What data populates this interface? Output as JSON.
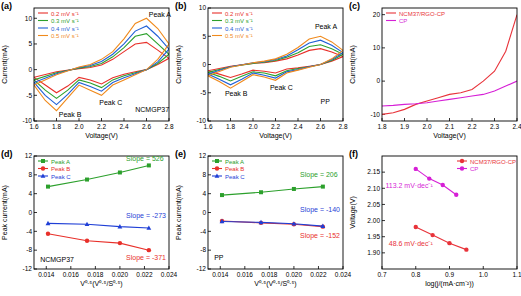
{
  "chart_data": [
    {
      "type": "line",
      "title": "(a)",
      "x_label": "Voltage(V)",
      "y_label": "Current(mA)",
      "x": [
        1.6,
        1.8,
        2.0,
        2.1,
        2.2,
        2.3,
        2.4,
        2.5,
        2.6,
        2.7,
        2.8,
        2.7,
        2.6,
        2.5,
        2.4,
        2.3,
        2.2,
        2.1,
        2.0,
        1.9,
        1.8,
        1.7,
        1.6
      ],
      "series": [
        {
          "name": "0.2 mV s⁻¹",
          "color": "#e8302a",
          "values": [
            -1.5,
            -0.4,
            0.2,
            0.4,
            0.9,
            2,
            3.5,
            5,
            5.3,
            3.8,
            2.2,
            1,
            0,
            -0.4,
            -0.9,
            -1.6,
            -2.8,
            -2,
            -1.5,
            -3.2,
            -4.5,
            -3,
            -1.5
          ]
        },
        {
          "name": "0.3 mV s⁻¹",
          "color": "#2ca02c",
          "values": [
            -2,
            -0.6,
            0.3,
            0.6,
            1.2,
            2.5,
            4.3,
            6.5,
            7,
            5,
            3,
            1.2,
            0,
            -0.6,
            -1.2,
            -2,
            -3.5,
            -2.6,
            -2,
            -4,
            -5.6,
            -4,
            -2
          ]
        },
        {
          "name": "0.4 mV s⁻¹",
          "color": "#1f5fd6",
          "values": [
            -2.5,
            -0.8,
            0.4,
            0.8,
            1.6,
            3,
            5,
            7.5,
            8.5,
            6.5,
            4,
            1.5,
            0,
            -0.8,
            -1.6,
            -2.5,
            -4.2,
            -3.3,
            -2.5,
            -4.8,
            -6.8,
            -5,
            -2.5
          ]
        },
        {
          "name": "0.5 mV s⁻¹",
          "color": "#f08a1c",
          "values": [
            -3,
            -1,
            0.5,
            1,
            2,
            3.5,
            6,
            9,
            10,
            8,
            5,
            2,
            0,
            -1,
            -2,
            -3,
            -5,
            -4,
            -3,
            -5.5,
            -8,
            -6,
            -3
          ]
        }
      ],
      "xlim": [
        1.6,
        2.8
      ],
      "xticks": [
        1.6,
        1.8,
        {
          "value": 2.0,
          "label": "2.0"
        },
        2.2,
        2.4,
        2.6,
        2.8
      ],
      "ylim": [
        -10,
        12
      ],
      "yticks": [
        -10,
        -5,
        0,
        5,
        10
      ],
      "legend": "top-left",
      "grid": false,
      "annotations": [
        {
          "text": "Peak A",
          "x": 2.62,
          "y": 10.3
        },
        {
          "text": "Peak C",
          "x": 2.18,
          "y": -6.8
        },
        {
          "text": "Peak B",
          "x": 1.82,
          "y": -9.3
        },
        {
          "text": "NCMGP37",
          "x": 2.5,
          "y": -8.3
        }
      ]
    },
    {
      "type": "line",
      "title": "(b)",
      "x_label": "Voltage(V)",
      "y_label": "Current(mA)",
      "x": [
        1.6,
        1.8,
        2.0,
        2.1,
        2.2,
        2.3,
        2.4,
        2.5,
        2.6,
        2.7,
        2.8,
        2.7,
        2.6,
        2.5,
        2.4,
        2.3,
        2.2,
        2.1,
        2.0,
        1.9,
        1.8,
        1.7,
        1.6
      ],
      "series": [
        {
          "name": "0.2 mV s⁻¹",
          "color": "#e8302a",
          "values": [
            -1.1,
            -0.3,
            0.2,
            0.3,
            0.6,
            1,
            1.7,
            2.5,
            2.8,
            2.2,
            1.4,
            0.6,
            0,
            -0.3,
            -0.6,
            -0.8,
            -1.5,
            -1.2,
            -1,
            -1.7,
            -2.3,
            -1.7,
            -1.1
          ]
        },
        {
          "name": "0.3 mV s⁻¹",
          "color": "#2ca02c",
          "values": [
            -1.4,
            -0.4,
            0.2,
            0.4,
            0.7,
            1.3,
            2.1,
            3.2,
            3.5,
            2.8,
            1.8,
            0.7,
            0,
            -0.4,
            -0.7,
            -1.1,
            -2,
            -1.5,
            -1.3,
            -2.1,
            -2.9,
            -2.1,
            -1.4
          ]
        },
        {
          "name": "0.4 mV s⁻¹",
          "color": "#1f5fd6",
          "values": [
            -1.7,
            -0.4,
            0.3,
            0.5,
            0.9,
            1.5,
            2.6,
            3.8,
            4.3,
            3.4,
            2.1,
            0.9,
            0,
            -0.4,
            -0.9,
            -1.3,
            -2.4,
            -1.9,
            -1.5,
            -2.6,
            -3.6,
            -2.6,
            -1.7
          ]
        },
        {
          "name": "0.5 mV s⁻¹",
          "color": "#f08a1c",
          "values": [
            -2,
            -0.5,
            0.3,
            0.6,
            1,
            1.8,
            3,
            4.5,
            5,
            4,
            2.5,
            1,
            0,
            -0.5,
            -1,
            -1.5,
            -2.8,
            -2.2,
            -1.8,
            -3,
            -4.2,
            -3,
            -2
          ]
        }
      ],
      "xlim": [
        1.6,
        2.8
      ],
      "xticks": [
        1.6,
        1.8,
        {
          "value": 2.0,
          "label": "2.0"
        },
        2.2,
        2.4,
        2.6,
        2.8
      ],
      "ylim": [
        -10,
        10
      ],
      "yticks": [
        -10,
        -5,
        0,
        5,
        10
      ],
      "legend": "top-left",
      "grid": false,
      "annotations": [
        {
          "text": "Peak A",
          "x": 2.55,
          "y": 6.2
        },
        {
          "text": "Peak C",
          "x": 2.15,
          "y": -4.6
        },
        {
          "text": "Peak B",
          "x": 1.75,
          "y": -5.6
        },
        {
          "text": "PP",
          "x": 2.6,
          "y": -7
        }
      ]
    },
    {
      "type": "line",
      "title": "(c)",
      "x_label": "Voltage(V)",
      "y_label": "Current(mA)",
      "x": [
        1.8,
        1.85,
        1.9,
        1.95,
        2.0,
        2.05,
        2.1,
        2.15,
        2.2,
        2.25,
        2.3,
        2.35,
        2.4
      ],
      "series": [
        {
          "name": "NCM37/RGO-CP",
          "color": "#e8333a",
          "values": [
            -10,
            -9.5,
            -8.5,
            -7,
            -6,
            -5,
            -4,
            -3.5,
            -2.5,
            0,
            3,
            9,
            20
          ]
        },
        {
          "name": "CP",
          "color": "#d61fd6",
          "values": [
            -7.5,
            -7.3,
            -7,
            -6.8,
            -6.5,
            -6,
            -5.5,
            -5,
            -4.5,
            -4,
            -3,
            -1.5,
            0
          ]
        }
      ],
      "xlim": [
        1.8,
        2.4
      ],
      "xticks": [
        1.8,
        1.9,
        {
          "value": 2.0,
          "label": "2.0"
        },
        2.1,
        2.2,
        2.3,
        2.4
      ],
      "ylim": [
        -12,
        22
      ],
      "yticks": [
        -10,
        0,
        10,
        20
      ],
      "legend": "top-left",
      "grid": false
    },
    {
      "type": "line",
      "title": "(d)",
      "x_label": "V⁰·⁵(V⁰·⁵/S⁰·⁵)",
      "y_label": "Peak current(mA)",
      "x": [
        0.01414,
        0.01732,
        0.02,
        0.02236
      ],
      "series": [
        {
          "name": "Peak A",
          "color": "#2ca02c",
          "marker": "square",
          "line_style": "solid",
          "values": [
            5.5,
            7,
            8.5,
            10
          ]
        },
        {
          "name": "Peak B",
          "color": "#e8302a",
          "marker": "circle",
          "line_style": "solid",
          "values": [
            -4.5,
            -6,
            -6.5,
            -8
          ]
        },
        {
          "name": "Peak C",
          "color": "#1f3fd6",
          "marker": "triangle",
          "line_style": "solid",
          "values": [
            -2.3,
            -2.5,
            -3,
            -3.3
          ]
        }
      ],
      "xlim": [
        0.013,
        0.024
      ],
      "xticks": [
        0.014,
        0.016,
        0.018,
        {
          "value": 0.02,
          "label": "0.020"
        },
        0.022,
        0.024
      ],
      "ylim": [
        -12,
        12
      ],
      "yticks": [
        -12,
        -8,
        -4,
        0,
        4,
        8,
        12
      ],
      "legend": "top-left",
      "grid": false,
      "annotations": [
        {
          "text": "Slope = 526",
          "x": 0.0205,
          "y": 11,
          "color": "#2ca02c"
        },
        {
          "text": "Slope = -273",
          "x": 0.0205,
          "y": -1.2,
          "color": "#1f3fd6"
        },
        {
          "text": "Slope = -371",
          "x": 0.0205,
          "y": -10,
          "color": "#e8302a"
        },
        {
          "text": "NCMGP37",
          "x": 0.0135,
          "y": -10.5
        }
      ]
    },
    {
      "type": "line",
      "title": "(e)",
      "x_label": "V⁰·⁵(V⁰·⁵/S⁰·⁵)",
      "y_label": "Peak current(mA)",
      "x": [
        0.01414,
        0.01732,
        0.02,
        0.02236
      ],
      "series": [
        {
          "name": "Peak A",
          "color": "#2ca02c",
          "marker": "square",
          "line_style": "solid",
          "values": [
            3.7,
            4.3,
            5,
            5.5
          ]
        },
        {
          "name": "Peak B",
          "color": "#e8302a",
          "marker": "circle",
          "line_style": "solid",
          "values": [
            -1.8,
            -2.2,
            -2.5,
            -3
          ]
        },
        {
          "name": "Peak C",
          "color": "#1f3fd6",
          "marker": "triangle",
          "line_style": "solid",
          "values": [
            -1.9,
            -2.1,
            -2.4,
            -2.9
          ]
        }
      ],
      "xlim": [
        0.013,
        0.024
      ],
      "xticks": [
        0.014,
        0.016,
        0.018,
        {
          "value": 0.02,
          "label": "0.020"
        },
        0.022,
        0.024
      ],
      "ylim": [
        -12,
        12
      ],
      "yticks": [
        -12,
        -8,
        -4,
        0,
        4,
        8,
        12
      ],
      "legend": "top-left",
      "grid": false,
      "annotations": [
        {
          "text": "Slope = 206",
          "x": 0.0205,
          "y": 7.5,
          "color": "#2ca02c"
        },
        {
          "text": "Slope = -140",
          "x": 0.0205,
          "y": 0.2,
          "color": "#1f3fd6"
        },
        {
          "text": "Slope = -152",
          "x": 0.0205,
          "y": -5.5,
          "color": "#e8302a"
        },
        {
          "text": "PP",
          "x": 0.0135,
          "y": -10
        }
      ]
    },
    {
      "type": "line",
      "title": "(f)",
      "x_label": "log(j/(mA·cm⁻²))",
      "y_label": "Voltage(V)",
      "series": [
        {
          "name": "NCM37/RGO-CP",
          "color": "#e8333a",
          "marker": "circle",
          "line_style": "solid",
          "x": [
            0.8,
            0.85,
            0.9,
            0.95
          ],
          "values": [
            1.98,
            1.955,
            1.93,
            1.91
          ]
        },
        {
          "name": "CP",
          "color": "#d61fd6",
          "marker": "circle",
          "line_style": "solid",
          "x": [
            0.8,
            0.84,
            0.88,
            0.92
          ],
          "values": [
            2.16,
            2.13,
            2.11,
            2.08
          ]
        }
      ],
      "xlim": [
        0.7,
        1.1
      ],
      "xticks": [
        0.7,
        0.8,
        0.9,
        {
          "value": 1.0,
          "label": "1.0"
        },
        1.1
      ],
      "ylim": [
        1.85,
        2.2
      ],
      "yticks": [
        {
          "value": 1.9,
          "label": "1.90"
        },
        1.95,
        {
          "value": 2.0,
          "label": "2.00"
        },
        2.05,
        {
          "value": 2.1,
          "label": "2.10"
        },
        2.15
      ],
      "legend": "top-right",
      "grid": false,
      "annotations": [
        {
          "text": "113.2 mV·dec⁻¹",
          "x": 0.71,
          "y": 2.1,
          "color": "#d61fd6"
        },
        {
          "text": "48.6 mV·dec⁻¹",
          "x": 0.72,
          "y": 1.92,
          "color": "#e8333a"
        }
      ]
    }
  ]
}
